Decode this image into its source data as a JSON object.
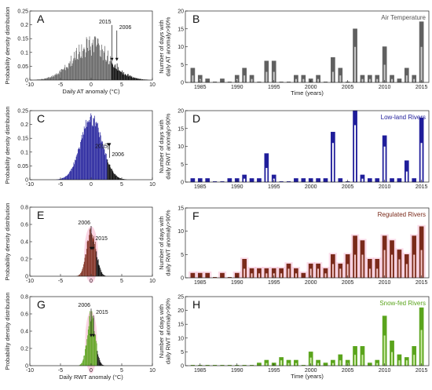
{
  "colors": {
    "air": "#606060",
    "air_light": "#c8c8c8",
    "lowland": "#1f1d9a",
    "lowland_light": "#ffffff",
    "regulated": "#7a2a1a",
    "regulated_light": "#f4c6c6",
    "snowfed": "#5aa41c",
    "snowfed_light": "#cdeaa6",
    "tail": "#000000",
    "highlight": "#f5b0cc"
  },
  "chart_data": [
    {
      "panel": "A",
      "type": "bar",
      "ylabel": "Probability density distribution",
      "xlabel": "Daily AT anomaly (°C)",
      "xlim": [
        -10,
        10
      ],
      "ylim": [
        0,
        0.25
      ],
      "xticks": [
        -10,
        -5,
        0,
        5,
        10
      ],
      "yticks": [
        0,
        0.05,
        0.1,
        0.15,
        0.2,
        0.25
      ],
      "ytick_labels": [
        "0",
        "0.05",
        "0.1",
        "0.15",
        "0.2",
        "0.25"
      ],
      "threshold": 3.2,
      "sigma": 3.0,
      "peak": 0.125,
      "noise": 0.3,
      "bin": 0.1,
      "annotations": [
        {
          "text": "2015",
          "x": 3.4,
          "label_y": 0.205
        },
        {
          "text": "2006",
          "x": 4.2,
          "label_y": 0.185
        }
      ]
    },
    {
      "panel": "C",
      "type": "bar",
      "ylabel": "Probability density distribution",
      "xlim": [
        -10,
        10
      ],
      "ylim": [
        0,
        0.25
      ],
      "xticks": [
        -10,
        -5,
        0,
        5,
        10
      ],
      "yticks": [
        0,
        0.05,
        0.1,
        0.15,
        0.2,
        0.25
      ],
      "ytick_labels": [
        "0",
        "0.05",
        "0.1",
        "0.15",
        "0.2",
        "0.25"
      ],
      "threshold": 2.6,
      "sigma": 1.75,
      "peak": 0.22,
      "noise": 0.12,
      "bin": 0.1,
      "annotations": [
        {
          "text": "2015",
          "x": 2.8,
          "label_y": 0.115
        },
        {
          "text": "2006",
          "x": 3.0,
          "label_y": 0.085
        }
      ]
    },
    {
      "panel": "E",
      "type": "bar",
      "ylabel": "Probability density distribution",
      "xlim": [
        -10,
        10
      ],
      "ylim": [
        0,
        0.8
      ],
      "xticks": [
        -10,
        -5,
        0,
        5,
        10
      ],
      "yticks": [
        0,
        0.2,
        0.4,
        0.6,
        0.8
      ],
      "ytick_labels": [
        "0",
        "0.2",
        "0.4",
        "0.6",
        "0.8"
      ],
      "threshold": 0.8,
      "sigma": 0.75,
      "peak": 0.55,
      "noise": 0.15,
      "bin": 0.1,
      "annotations": [
        {
          "text": "2006",
          "x": 0.0,
          "label_y": 0.6
        },
        {
          "text": "2015",
          "x": 0.3,
          "label_y": 0.42
        }
      ]
    },
    {
      "panel": "G",
      "type": "bar",
      "ylabel": "Probability density distribution",
      "xlabel": "Daily RWT anomaly (°C)",
      "xlim": [
        -10,
        10
      ],
      "ylim": [
        0,
        0.8
      ],
      "xticks": [
        -10,
        -5,
        0,
        5,
        10
      ],
      "yticks": [
        0,
        0.2,
        0.4,
        0.6,
        0.8
      ],
      "ytick_labels": [
        "0",
        "0.2",
        "0.4",
        "0.6",
        "0.8"
      ],
      "threshold": 0.9,
      "sigma": 0.65,
      "peak": 0.6,
      "noise": 0.15,
      "bin": 0.1,
      "annotations": [
        {
          "text": "2006",
          "x": 0.0,
          "label_y": 0.68
        },
        {
          "text": "2015",
          "x": 0.4,
          "label_y": 0.6
        }
      ]
    },
    {
      "panel": "B",
      "type": "bar",
      "title": "Air Temperature",
      "ylabel": "Number of days with daily AT anomaly>90%",
      "xlabel": "Time (years)",
      "ylim": [
        0,
        20
      ],
      "yticks": [
        0,
        5,
        10,
        15,
        20
      ],
      "xticks": [
        1985,
        1990,
        1995,
        2000,
        2005,
        2010,
        2015
      ],
      "x": [
        1984,
        1985,
        1986,
        1987,
        1988,
        1989,
        1990,
        1991,
        1992,
        1993,
        1994,
        1995,
        1996,
        1997,
        1998,
        1999,
        2000,
        2001,
        2002,
        2003,
        2004,
        2005,
        2006,
        2007,
        2008,
        2009,
        2010,
        2011,
        2012,
        2013,
        2014,
        2015
      ],
      "series": [
        {
          "values": [
            4,
            2,
            1,
            0,
            1,
            0,
            2,
            4,
            2,
            0,
            6,
            6,
            0,
            0,
            2,
            2,
            1,
            2,
            0,
            7,
            4,
            0,
            15,
            2,
            2,
            2,
            10,
            2,
            1,
            4,
            2,
            17
          ]
        },
        {
          "values": [
            2,
            1,
            0,
            0,
            0,
            0,
            1,
            2,
            1,
            0,
            3,
            3,
            0,
            0,
            1,
            1,
            0,
            1,
            0,
            3,
            2,
            0,
            10,
            1,
            1,
            1,
            5,
            1,
            0,
            2,
            1,
            10
          ]
        }
      ]
    },
    {
      "panel": "D",
      "type": "bar",
      "title": "Low-land Rivers",
      "ylabel": "Number of days with daily RWT anomaly>90%",
      "ylim": [
        0,
        20
      ],
      "yticks": [
        0,
        5,
        10,
        15,
        20
      ],
      "xticks": [
        1985,
        1990,
        1995,
        2000,
        2005,
        2010,
        2015
      ],
      "x": [
        1984,
        1985,
        1986,
        1987,
        1988,
        1989,
        1990,
        1991,
        1992,
        1993,
        1994,
        1995,
        1996,
        1997,
        1998,
        1999,
        2000,
        2001,
        2002,
        2003,
        2004,
        2005,
        2006,
        2007,
        2008,
        2009,
        2010,
        2011,
        2012,
        2013,
        2014,
        2015
      ],
      "series": [
        {
          "values": [
            1,
            1,
            1,
            0,
            0,
            1,
            1,
            2,
            1,
            1,
            8,
            2,
            0,
            0,
            1,
            1,
            1,
            1,
            1,
            14,
            1,
            0,
            20,
            2,
            1,
            1,
            13,
            1,
            1,
            6,
            1,
            18
          ]
        },
        {
          "values": [
            0,
            0,
            0,
            0,
            0,
            0,
            0,
            1,
            0,
            0,
            4,
            1,
            0,
            0,
            0,
            0,
            0,
            0,
            0,
            11,
            0,
            0,
            16,
            1,
            0,
            0,
            10,
            0,
            0,
            3,
            0,
            11
          ]
        }
      ]
    },
    {
      "panel": "F",
      "type": "bar",
      "title": "Regulated Rivers",
      "ylabel": "Number of days with daily RWT anomaly>90%",
      "ylim": [
        0,
        15
      ],
      "yticks": [
        0,
        5,
        10,
        15
      ],
      "xticks": [
        1985,
        1990,
        1995,
        2000,
        2005,
        2010,
        2015
      ],
      "x": [
        1984,
        1985,
        1986,
        1987,
        1988,
        1989,
        1990,
        1991,
        1992,
        1993,
        1994,
        1995,
        1996,
        1997,
        1998,
        1999,
        2000,
        2001,
        2002,
        2003,
        2004,
        2005,
        2006,
        2007,
        2008,
        2009,
        2010,
        2011,
        2012,
        2013,
        2014,
        2015
      ],
      "series": [
        {
          "values": [
            1,
            1,
            1,
            0,
            1,
            0,
            1,
            4,
            2,
            2,
            2,
            2,
            2,
            3,
            2,
            1,
            3,
            3,
            2,
            5,
            3,
            5,
            9,
            8,
            4,
            4,
            9,
            8,
            6,
            5,
            9,
            11
          ]
        },
        {
          "values": [
            0,
            0,
            0,
            0,
            0,
            0,
            0,
            2,
            1,
            1,
            1,
            1,
            1,
            2,
            1,
            0,
            2,
            2,
            1,
            3,
            2,
            3,
            5,
            5,
            2,
            2,
            6,
            5,
            4,
            3,
            5,
            6
          ]
        }
      ]
    },
    {
      "panel": "H",
      "type": "bar",
      "title": "Snow-fed Rivers",
      "ylabel": "Number of days with daily RWT anomaly>90%",
      "xlabel": "Time (years)",
      "ylim": [
        0,
        25
      ],
      "yticks": [
        0,
        5,
        10,
        15,
        20,
        25
      ],
      "xticks": [
        1985,
        1990,
        1995,
        2000,
        2005,
        2010,
        2015
      ],
      "x": [
        1984,
        1985,
        1986,
        1987,
        1988,
        1989,
        1990,
        1991,
        1992,
        1993,
        1994,
        1995,
        1996,
        1997,
        1998,
        1999,
        2000,
        2001,
        2002,
        2003,
        2004,
        2005,
        2006,
        2007,
        2008,
        2009,
        2010,
        2011,
        2012,
        2013,
        2014,
        2015
      ],
      "series": [
        {
          "values": [
            0,
            0,
            0,
            0,
            0,
            0,
            0,
            0,
            0,
            1,
            2,
            1,
            3,
            2,
            2,
            0,
            5,
            2,
            1,
            2,
            4,
            2,
            7,
            7,
            1,
            2,
            18,
            9,
            4,
            3,
            7,
            21
          ]
        },
        {
          "values": [
            0,
            0,
            0,
            0,
            0,
            0,
            0,
            0,
            0,
            0,
            1,
            0,
            2,
            1,
            1,
            0,
            3,
            1,
            0,
            1,
            2,
            1,
            4,
            4,
            0,
            1,
            11,
            5,
            2,
            2,
            4,
            13
          ]
        }
      ]
    }
  ]
}
